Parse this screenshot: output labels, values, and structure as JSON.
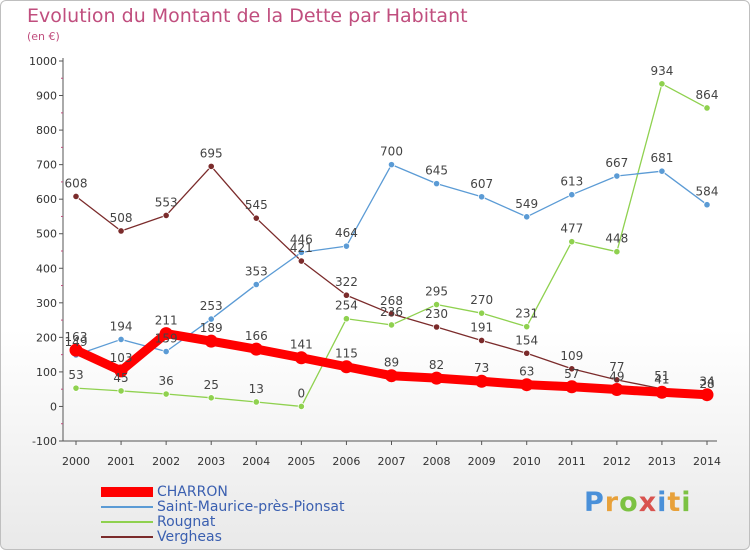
{
  "header": {
    "title": "Evolution du Montant de la Dette par Habitant",
    "subtitle": "(en €)"
  },
  "logo": {
    "text": "Proxiti",
    "colors": [
      "#4a90d9",
      "#e8a13a",
      "#7cc243",
      "#d9534f",
      "#4a90d9",
      "#e8a13a",
      "#7cc243"
    ]
  },
  "chart_data": {
    "type": "line",
    "title": "Evolution du Montant de la Dette par Habitant",
    "subtitle": "(en €)",
    "xlabel": "",
    "ylabel": "",
    "ylim": [
      -100,
      1000
    ],
    "yticks": [
      -100,
      0,
      100,
      200,
      300,
      400,
      500,
      600,
      700,
      800,
      900,
      1000
    ],
    "grid": false,
    "legend_position": "bottom-left",
    "categories": [
      "2000",
      "2001",
      "2002",
      "2003",
      "2004",
      "2005",
      "2006",
      "2007",
      "2008",
      "2009",
      "2010",
      "2011",
      "2012",
      "2013",
      "2014"
    ],
    "series": [
      {
        "name": "CHARRON",
        "color": "#ff0000",
        "values": [
          163,
          103,
          211,
          189,
          166,
          141,
          115,
          89,
          82,
          73,
          63,
          57,
          49,
          41,
          34
        ],
        "labels": [
          "163",
          "103",
          "211",
          "189",
          "166",
          "141",
          "115",
          "89",
          "82",
          "73",
          "63",
          "57",
          "49",
          "41",
          "34"
        ]
      },
      {
        "name": "Saint-Maurice-près-Pionsat",
        "color": "#5b9bd5",
        "values": [
          149,
          194,
          159,
          253,
          353,
          446,
          464,
          700,
          645,
          607,
          549,
          613,
          667,
          681,
          584
        ],
        "labels": [
          "149",
          "194",
          "159",
          "253",
          "353",
          "446",
          "464",
          "700",
          "645",
          "607",
          "549",
          "613",
          "667",
          "681",
          "584"
        ]
      },
      {
        "name": "Rougnat",
        "color": "#8fd14f",
        "values": [
          53,
          45,
          36,
          25,
          13,
          0,
          254,
          236,
          295,
          270,
          231,
          477,
          448,
          934,
          864
        ],
        "labels": [
          "53",
          "45",
          "36",
          "25",
          "13",
          "0",
          "254",
          "236",
          "295",
          "270",
          "231",
          "477",
          "448",
          "934",
          "864"
        ]
      },
      {
        "name": "Vergheas",
        "color": "#7b2b2b",
        "values": [
          608,
          508,
          553,
          695,
          545,
          421,
          322,
          268,
          230,
          191,
          154,
          109,
          77,
          51,
          28
        ],
        "labels": [
          "608",
          "508",
          "553",
          "695",
          "545",
          "421",
          "322",
          "268",
          "230",
          "191",
          "154",
          "109",
          "77",
          "51",
          "28"
        ]
      }
    ]
  }
}
